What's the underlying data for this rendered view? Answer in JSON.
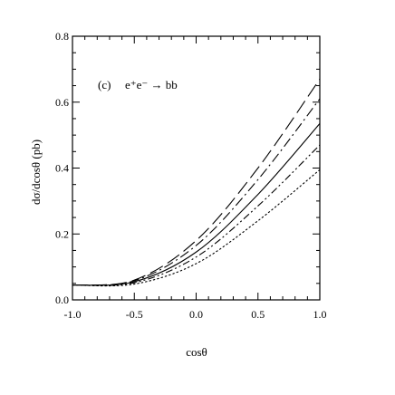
{
  "chart_data": {
    "type": "line",
    "xlabel": "cosθ",
    "ylabel": "dσ/dcosθ  (pb)",
    "xlim": [
      -1.0,
      1.0
    ],
    "ylim": [
      0.0,
      0.8
    ],
    "x_ticks": [
      -1.0,
      -0.5,
      0.0,
      0.5,
      1.0
    ],
    "x_tick_labels": [
      "-1.0",
      "-0.5",
      "0.0",
      "0.5",
      "1.0"
    ],
    "y_ticks": [
      0.0,
      0.2,
      0.4,
      0.6,
      0.8
    ],
    "y_tick_labels": [
      "0.0",
      "0.2",
      "0.4",
      "0.6",
      "0.8"
    ],
    "grid": false,
    "legend": "none",
    "annotations": [
      {
        "label": "(c)",
        "process": "e⁺e⁻ → bb"
      }
    ],
    "series": [
      {
        "style": "long-dash",
        "x": [
          -1.0,
          -0.5,
          0.0,
          0.5,
          1.0
        ],
        "y": [
          0.045,
          0.06,
          0.18,
          0.4,
          0.67
        ]
      },
      {
        "style": "dash-dot",
        "x": [
          -1.0,
          -0.5,
          0.0,
          0.5,
          1.0
        ],
        "y": [
          0.045,
          0.058,
          0.165,
          0.365,
          0.61
        ]
      },
      {
        "style": "solid",
        "x": [
          -1.0,
          -0.5,
          0.0,
          0.5,
          1.0
        ],
        "y": [
          0.045,
          0.055,
          0.145,
          0.32,
          0.535
        ]
      },
      {
        "style": "dash-dot-dot",
        "x": [
          -1.0,
          -0.5,
          0.0,
          0.5,
          1.0
        ],
        "y": [
          0.045,
          0.052,
          0.13,
          0.285,
          0.47
        ]
      },
      {
        "style": "dotted",
        "x": [
          -1.0,
          -0.5,
          0.0,
          0.5,
          1.0
        ],
        "y": [
          0.045,
          0.048,
          0.11,
          0.24,
          0.395
        ]
      }
    ]
  }
}
